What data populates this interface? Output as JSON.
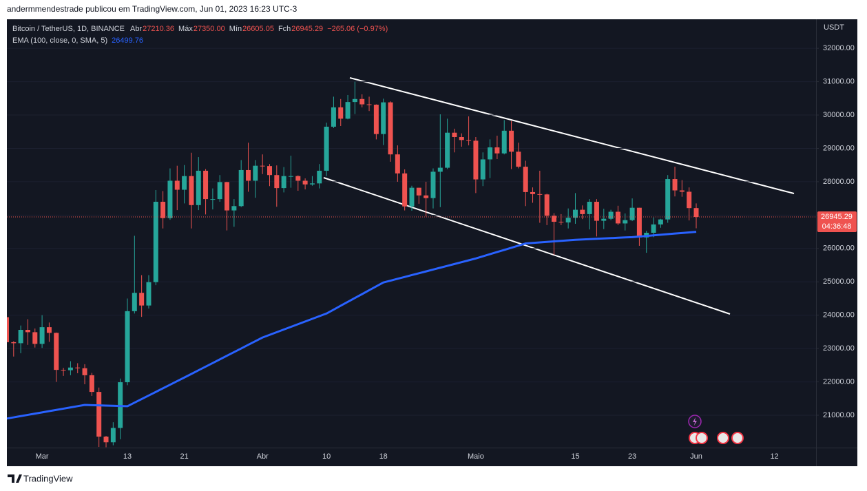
{
  "header": "andermmendestrade publicou em TradingView.com, Jun 01, 2023 16:23 UTC-3",
  "footer": "TradingView",
  "chart_data": {
    "type": "candlestick",
    "y_axis_unit": "USDT",
    "ylim": [
      20030,
      32870
    ],
    "yticks": [
      {
        "value": 21000,
        "label": "21000.00"
      },
      {
        "value": 22000,
        "label": "22000.00"
      },
      {
        "value": 23000,
        "label": "23000.00"
      },
      {
        "value": 24000,
        "label": "24000.00"
      },
      {
        "value": 25000,
        "label": "25000.00"
      },
      {
        "value": 26000,
        "label": "26000.00"
      },
      {
        "value": 27000,
        "label": "27000.00"
      },
      {
        "value": 28000,
        "label": "28000.00"
      },
      {
        "value": 29000,
        "label": "29000.00"
      },
      {
        "value": 30000,
        "label": "30000.00"
      },
      {
        "value": 31000,
        "label": "31000.00"
      },
      {
        "value": 32000,
        "label": "32000.00"
      }
    ],
    "categories": [
      null,
      null,
      null,
      null,
      null,
      "Mar",
      null,
      null,
      null,
      null,
      null,
      null,
      null,
      null,
      null,
      null,
      null,
      "13",
      null,
      null,
      null,
      null,
      null,
      null,
      null,
      "21",
      null,
      null,
      null,
      null,
      null,
      null,
      null,
      null,
      null,
      null,
      "Abr",
      null,
      null,
      null,
      null,
      null,
      null,
      null,
      null,
      "10",
      null,
      null,
      null,
      null,
      null,
      null,
      null,
      "18",
      null,
      null,
      null,
      null,
      null,
      null,
      null,
      null,
      null,
      null,
      null,
      null,
      "Maio",
      null,
      null,
      null,
      null,
      null,
      null,
      null,
      null,
      null,
      null,
      null,
      null,
      null,
      "15",
      null,
      null,
      null,
      null,
      null,
      null,
      null,
      "23",
      null,
      null,
      null,
      null,
      null,
      null,
      null,
      null,
      "Jun",
      null,
      null,
      null,
      null,
      null,
      null,
      null,
      null,
      null,
      null,
      "12"
    ],
    "countdown": "04:36:48",
    "series": [
      {
        "name": "Bitcoin / TetherUS, 1D, BINANCE",
        "type": "candlestick",
        "up_color": "#26a69a",
        "down_color": "#ef5350",
        "legend": {
          "labels": [
            "Abr",
            "Máx",
            "Mín",
            "Fch"
          ],
          "value_labels": [
            "27210.36",
            "27350.00",
            "26605.05",
            "26945.29"
          ],
          "change": "−265.06 (−0.97%)"
        },
        "open": [
          23940,
          23190,
          23160,
          23560,
          23490,
          23140,
          23640,
          23470,
          22360,
          22350,
          22430,
          22410,
          22200,
          21700,
          20360,
          20190,
          20620,
          21990,
          24120,
          24670,
          24290,
          24990,
          27400,
          26910,
          28030,
          27760,
          28170,
          27300,
          28330,
          27480,
          27480,
          27990,
          27140,
          27270,
          28350,
          28030,
          28480,
          28470,
          28200,
          27810,
          28170,
          28170,
          28030,
          27920,
          27950,
          28330,
          29650,
          30230,
          29890,
          30390,
          30480,
          30320,
          30310,
          29430,
          30380,
          28820,
          28250,
          27260,
          27820,
          27590,
          27510,
          28300,
          28420,
          29470,
          29340,
          29250,
          29230,
          28070,
          28670,
          29030,
          28850,
          29530,
          28900,
          28450,
          27690,
          27630,
          27620,
          26980,
          26800,
          26780,
          26920,
          27160,
          27030,
          27400,
          26830,
          26890,
          27100,
          26750,
          26850,
          27220,
          26330,
          26470,
          26720,
          26870,
          28080,
          27740,
          27700,
          27210.36,
          null,
          null,
          null,
          null,
          null,
          null,
          null,
          null,
          null,
          null,
          null
        ],
        "high": [
          24130,
          23220,
          23690,
          23880,
          23600,
          24000,
          23780,
          23480,
          22420,
          22620,
          22560,
          22530,
          22270,
          21830,
          20380,
          20790,
          22100,
          24500,
          26380,
          25200,
          25200,
          27750,
          27720,
          28400,
          28480,
          28500,
          28870,
          28740,
          28380,
          27800,
          28200,
          28000,
          27480,
          28650,
          29170,
          28650,
          28820,
          28530,
          28490,
          28440,
          28780,
          28190,
          28100,
          28170,
          28530,
          29770,
          30550,
          30480,
          30600,
          31000,
          30620,
          30550,
          30320,
          30490,
          30410,
          29090,
          28370,
          27880,
          27820,
          28000,
          28400,
          30020,
          29890,
          29590,
          29450,
          29960,
          29340,
          28880,
          29270,
          29380,
          29850,
          29820,
          29170,
          28630,
          27830,
          28330,
          27640,
          27060,
          27030,
          27200,
          27660,
          27290,
          27480,
          27480,
          27190,
          27160,
          27280,
          27050,
          27500,
          27220,
          26530,
          26930,
          26890,
          28200,
          28450,
          28050,
          27830,
          27350,
          null,
          null,
          null,
          null,
          null,
          null,
          null,
          null,
          null,
          null,
          null
        ],
        "low": [
          22900,
          22760,
          22860,
          23110,
          23030,
          23020,
          23200,
          22000,
          22180,
          22200,
          22260,
          21930,
          21580,
          20050,
          20040,
          20100,
          20280,
          21900,
          24050,
          23950,
          24200,
          24900,
          26600,
          26860,
          27150,
          27350,
          26600,
          27150,
          27020,
          27170,
          27400,
          26540,
          26650,
          27240,
          27700,
          27520,
          28230,
          27870,
          27250,
          27680,
          27820,
          27730,
          27770,
          27880,
          27800,
          28170,
          29610,
          29670,
          29870,
          30030,
          30230,
          30120,
          29270,
          29100,
          28600,
          28000,
          27140,
          27130,
          27340,
          26960,
          27200,
          27240,
          28380,
          28880,
          29050,
          29090,
          27660,
          27870,
          28110,
          28680,
          28820,
          28380,
          28400,
          27270,
          27370,
          26770,
          26700,
          25810,
          26700,
          26600,
          26740,
          26880,
          26570,
          26360,
          26580,
          26850,
          26700,
          26540,
          26820,
          26080,
          25870,
          26340,
          26620,
          26770,
          27560,
          27550,
          26840,
          26605.05,
          null,
          null,
          null,
          null,
          null,
          null,
          null,
          null,
          null,
          null,
          null
        ],
        "close": [
          23190,
          23160,
          23560,
          23490,
          23140,
          23640,
          23470,
          22360,
          22350,
          22430,
          22410,
          22200,
          21700,
          20360,
          20190,
          20620,
          21990,
          24120,
          24670,
          24290,
          24990,
          27400,
          26910,
          28030,
          27760,
          28170,
          27300,
          28330,
          27480,
          27480,
          27990,
          27140,
          27270,
          28350,
          28030,
          28480,
          28470,
          28200,
          27810,
          28170,
          28170,
          28030,
          27920,
          27950,
          28330,
          29650,
          30230,
          29890,
          30390,
          30480,
          30320,
          30310,
          29430,
          30380,
          28820,
          28250,
          27260,
          27820,
          27590,
          27510,
          28300,
          28420,
          29470,
          29340,
          29250,
          29230,
          28070,
          28670,
          29030,
          28850,
          29530,
          28900,
          28450,
          27690,
          27630,
          27620,
          26980,
          26800,
          26780,
          26920,
          27160,
          27030,
          27400,
          26830,
          26890,
          27100,
          26750,
          26850,
          27220,
          26330,
          26470,
          26720,
          26870,
          28080,
          27740,
          27700,
          27210,
          26945.29,
          null,
          null,
          null,
          null,
          null,
          null,
          null,
          null,
          null,
          null,
          null
        ]
      },
      {
        "name": "EMA (100, close, 0, SMA, 5)",
        "type": "line",
        "color": "#2962ff",
        "values": [
          20900,
          20937,
          20975,
          21012,
          21049,
          21086,
          21124,
          21161,
          21198,
          21235,
          21273,
          21310,
          21303,
          21297,
          21290,
          21283,
          21277,
          21270,
          21378,
          21485,
          21593,
          21700,
          21808,
          21915,
          22023,
          22130,
          22239,
          22348,
          22457,
          22566,
          22675,
          22784,
          22893,
          23002,
          23112,
          23221,
          23330,
          23410,
          23490,
          23570,
          23650,
          23730,
          23810,
          23890,
          23970,
          24050,
          24166,
          24283,
          24399,
          24515,
          24631,
          24748,
          24864,
          24980,
          25035,
          25091,
          25146,
          25202,
          25257,
          25312,
          25368,
          25423,
          25478,
          25534,
          25589,
          25645,
          25700,
          25764,
          25829,
          25893,
          25957,
          26021,
          26086,
          26150,
          26166,
          26181,
          26197,
          26213,
          26229,
          26244,
          26260,
          26270,
          26280,
          26290,
          26300,
          26310,
          26320,
          26330,
          26340,
          26358,
          26376,
          26393,
          26411,
          26429,
          26447,
          26464,
          26482,
          26499.76,
          null,
          null,
          null,
          null,
          null,
          null,
          null,
          null,
          null,
          null,
          null
        ]
      }
    ]
  }
}
